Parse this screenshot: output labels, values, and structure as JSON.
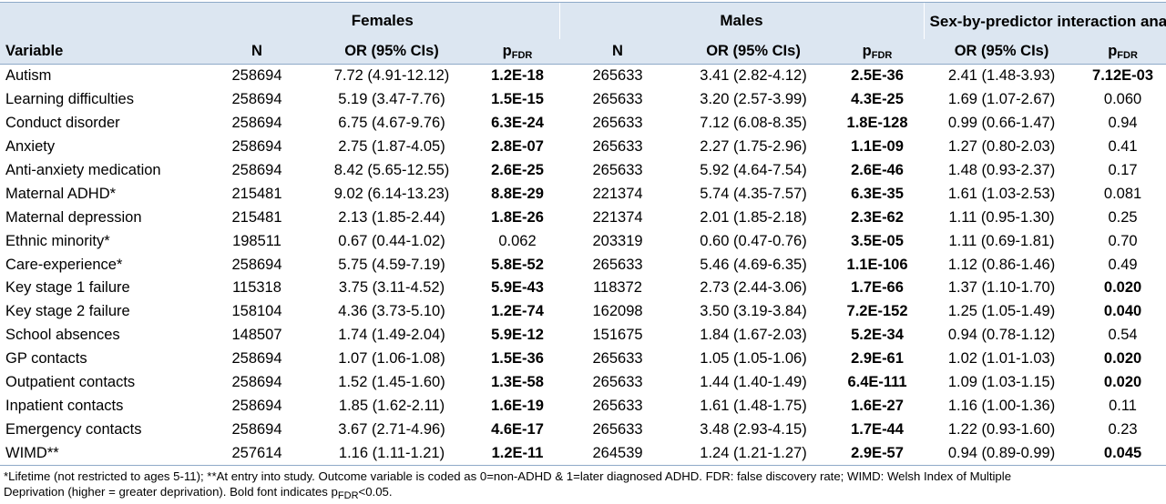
{
  "header": {
    "groups": {
      "females": "Females",
      "males": "Males",
      "interaction": "Sex-by-predictor interaction analysis"
    },
    "columns": {
      "variable": "Variable",
      "n": "N",
      "or": "OR (95% CIs)",
      "p_main": "p",
      "p_sub": "FDR"
    }
  },
  "rows": [
    {
      "variable": "Autism",
      "f_n": "258694",
      "f_or": "7.72 (4.91-12.12)",
      "f_p": "1.2E-18",
      "f_bold": true,
      "m_n": "265633",
      "m_or": "3.41 (2.82-4.12)",
      "m_p": "2.5E-36",
      "m_bold": true,
      "i_or": "2.41 (1.48-3.93)",
      "i_p": "7.12E-03",
      "i_bold": true
    },
    {
      "variable": "Learning difficulties",
      "f_n": "258694",
      "f_or": "5.19 (3.47-7.76)",
      "f_p": "1.5E-15",
      "f_bold": true,
      "m_n": "265633",
      "m_or": "3.20 (2.57-3.99)",
      "m_p": "4.3E-25",
      "m_bold": true,
      "i_or": "1.69 (1.07-2.67)",
      "i_p": "0.060",
      "i_bold": false
    },
    {
      "variable": "Conduct disorder",
      "f_n": "258694",
      "f_or": "6.75 (4.67-9.76)",
      "f_p": "6.3E-24",
      "f_bold": true,
      "m_n": "265633",
      "m_or": "7.12 (6.08-8.35)",
      "m_p": "1.8E-128",
      "m_bold": true,
      "i_or": "0.99 (0.66-1.47)",
      "i_p": "0.94",
      "i_bold": false
    },
    {
      "variable": "Anxiety",
      "f_n": "258694",
      "f_or": "2.75 (1.87-4.05)",
      "f_p": "2.8E-07",
      "f_bold": true,
      "m_n": "265633",
      "m_or": "2.27 (1.75-2.96)",
      "m_p": "1.1E-09",
      "m_bold": true,
      "i_or": "1.27 (0.80-2.03)",
      "i_p": "0.41",
      "i_bold": false
    },
    {
      "variable": "Anti-anxiety medication",
      "f_n": "258694",
      "f_or": "8.42 (5.65-12.55)",
      "f_p": "2.6E-25",
      "f_bold": true,
      "m_n": "265633",
      "m_or": "5.92 (4.64-7.54)",
      "m_p": "2.6E-46",
      "m_bold": true,
      "i_or": "1.48 (0.93-2.37)",
      "i_p": "0.17",
      "i_bold": false
    },
    {
      "variable": "Maternal ADHD*",
      "f_n": "215481",
      "f_or": "9.02 (6.14-13.23)",
      "f_p": "8.8E-29",
      "f_bold": true,
      "m_n": "221374",
      "m_or": "5.74 (4.35-7.57)",
      "m_p": "6.3E-35",
      "m_bold": true,
      "i_or": "1.61 (1.03-2.53)",
      "i_p": "0.081",
      "i_bold": false
    },
    {
      "variable": "Maternal depression",
      "f_n": "215481",
      "f_or": "2.13 (1.85-2.44)",
      "f_p": "1.8E-26",
      "f_bold": true,
      "m_n": "221374",
      "m_or": "2.01 (1.85-2.18)",
      "m_p": "2.3E-62",
      "m_bold": true,
      "i_or": "1.11 (0.95-1.30)",
      "i_p": "0.25",
      "i_bold": false
    },
    {
      "variable": "Ethnic minority*",
      "f_n": "198511",
      "f_or": "0.67 (0.44-1.02)",
      "f_p": "0.062",
      "f_bold": false,
      "m_n": "203319",
      "m_or": "0.60 (0.47-0.76)",
      "m_p": "3.5E-05",
      "m_bold": true,
      "i_or": "1.11 (0.69-1.81)",
      "i_p": "0.70",
      "i_bold": false
    },
    {
      "variable": "Care-experience*",
      "f_n": "258694",
      "f_or": "5.75 (4.59-7.19)",
      "f_p": "5.8E-52",
      "f_bold": true,
      "m_n": "265633",
      "m_or": "5.46 (4.69-6.35)",
      "m_p": "1.1E-106",
      "m_bold": true,
      "i_or": "1.12 (0.86-1.46)",
      "i_p": "0.49",
      "i_bold": false
    },
    {
      "variable": "Key stage 1 failure",
      "f_n": "115318",
      "f_or": "3.75 (3.11-4.52)",
      "f_p": "5.9E-43",
      "f_bold": true,
      "m_n": "118372",
      "m_or": "2.73 (2.44-3.06)",
      "m_p": "1.7E-66",
      "m_bold": true,
      "i_or": "1.37 (1.10-1.70)",
      "i_p": "0.020",
      "i_bold": true
    },
    {
      "variable": "Key stage 2 failure",
      "f_n": "158104",
      "f_or": "4.36 (3.73-5.10)",
      "f_p": "1.2E-74",
      "f_bold": true,
      "m_n": "162098",
      "m_or": "3.50 (3.19-3.84)",
      "m_p": "7.2E-152",
      "m_bold": true,
      "i_or": "1.25 (1.05-1.49)",
      "i_p": "0.040",
      "i_bold": true
    },
    {
      "variable": "School absences",
      "f_n": "148507",
      "f_or": "1.74 (1.49-2.04)",
      "f_p": "5.9E-12",
      "f_bold": true,
      "m_n": "151675",
      "m_or": "1.84 (1.67-2.03)",
      "m_p": "5.2E-34",
      "m_bold": true,
      "i_or": "0.94 (0.78-1.12)",
      "i_p": "0.54",
      "i_bold": false
    },
    {
      "variable": "GP contacts",
      "f_n": "258694",
      "f_or": "1.07 (1.06-1.08)",
      "f_p": "1.5E-36",
      "f_bold": true,
      "m_n": "265633",
      "m_or": "1.05 (1.05-1.06)",
      "m_p": "2.9E-61",
      "m_bold": true,
      "i_or": "1.02 (1.01-1.03)",
      "i_p": "0.020",
      "i_bold": true
    },
    {
      "variable": "Outpatient contacts",
      "f_n": "258694",
      "f_or": "1.52 (1.45-1.60)",
      "f_p": "1.3E-58",
      "f_bold": true,
      "m_n": "265633",
      "m_or": "1.44 (1.40-1.49)",
      "m_p": "6.4E-111",
      "m_bold": true,
      "i_or": "1.09 (1.03-1.15)",
      "i_p": "0.020",
      "i_bold": true
    },
    {
      "variable": "Inpatient contacts",
      "f_n": "258694",
      "f_or": "1.85 (1.62-2.11)",
      "f_p": "1.6E-19",
      "f_bold": true,
      "m_n": "265633",
      "m_or": "1.61 (1.48-1.75)",
      "m_p": "1.6E-27",
      "m_bold": true,
      "i_or": "1.16 (1.00-1.36)",
      "i_p": "0.11",
      "i_bold": false
    },
    {
      "variable": "Emergency contacts",
      "f_n": "258694",
      "f_or": "3.67 (2.71-4.96)",
      "f_p": "4.6E-17",
      "f_bold": true,
      "m_n": "265633",
      "m_or": "3.48 (2.93-4.15)",
      "m_p": "1.7E-44",
      "m_bold": true,
      "i_or": "1.22 (0.93-1.60)",
      "i_p": "0.23",
      "i_bold": false
    },
    {
      "variable": "WIMD**",
      "f_n": "257614",
      "f_or": "1.16 (1.11-1.21)",
      "f_p": "1.2E-11",
      "f_bold": true,
      "m_n": "264539",
      "m_or": "1.24 (1.21-1.27)",
      "m_p": "2.9E-57",
      "m_bold": true,
      "i_or": "0.94 (0.89-0.99)",
      "i_p": "0.045",
      "i_bold": true
    }
  ],
  "footnote": {
    "line1": "*Lifetime (not restricted to ages 5-11); **At entry into study. Outcome variable is coded as 0=non-ADHD & 1=later diagnosed ADHD. FDR: false discovery rate; WIMD: Welsh Index of Multiple",
    "line2_pre": "Deprivation (higher = greater deprivation). Bold font indicates p",
    "line2_sub": "FDR",
    "line2_post": "<0.05."
  }
}
